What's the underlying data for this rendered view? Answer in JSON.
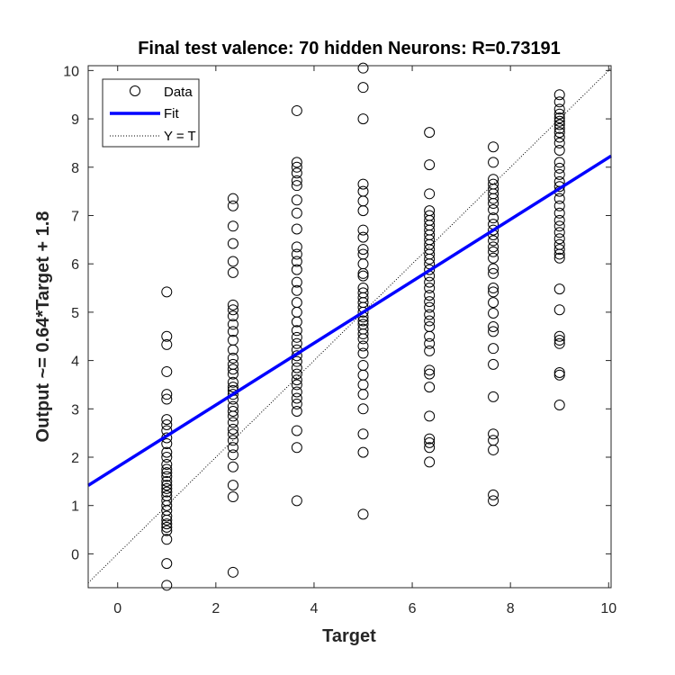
{
  "chart_data": {
    "type": "scatter",
    "title": "Final test valence: 70 hidden Neurons: R=0.73191",
    "xlabel": "Target",
    "ylabel": "Output ~= 0.64*Target + 1.8",
    "xlim": [
      -0.6,
      10.05
    ],
    "ylim": [
      -0.7,
      10.1
    ],
    "xticks": [
      0,
      2,
      4,
      6,
      8,
      10
    ],
    "yticks": [
      0,
      1,
      2,
      3,
      4,
      5,
      6,
      7,
      8,
      9,
      10
    ],
    "grid": false,
    "legend_position": "top-left",
    "legend": [
      "Data",
      "Fit",
      "Y = T"
    ],
    "fit": {
      "slope": 0.64,
      "intercept": 1.8,
      "color": "#0000ff"
    },
    "identity_line": {
      "slope": 1,
      "intercept": 0,
      "style": "dotted"
    },
    "marker": "open-circle",
    "data_points": [
      {
        "x": 1.0,
        "y": 5.42
      },
      {
        "x": 1.0,
        "y": 4.5
      },
      {
        "x": 1.0,
        "y": 4.33
      },
      {
        "x": 1.0,
        "y": 3.77
      },
      {
        "x": 1.0,
        "y": 3.3
      },
      {
        "x": 1.0,
        "y": 3.2
      },
      {
        "x": 1.0,
        "y": 2.78
      },
      {
        "x": 1.0,
        "y": 2.67
      },
      {
        "x": 1.0,
        "y": 2.55
      },
      {
        "x": 1.0,
        "y": 2.4
      },
      {
        "x": 1.0,
        "y": 2.28
      },
      {
        "x": 1.0,
        "y": 2.1
      },
      {
        "x": 1.0,
        "y": 2.0
      },
      {
        "x": 1.0,
        "y": 1.85
      },
      {
        "x": 1.0,
        "y": 1.75
      },
      {
        "x": 1.0,
        "y": 1.68
      },
      {
        "x": 1.0,
        "y": 1.6
      },
      {
        "x": 1.0,
        "y": 1.5
      },
      {
        "x": 1.0,
        "y": 1.42
      },
      {
        "x": 1.0,
        "y": 1.35
      },
      {
        "x": 1.0,
        "y": 1.28
      },
      {
        "x": 1.0,
        "y": 1.2
      },
      {
        "x": 1.0,
        "y": 1.1
      },
      {
        "x": 1.0,
        "y": 1.0
      },
      {
        "x": 1.0,
        "y": 0.9
      },
      {
        "x": 1.0,
        "y": 0.78
      },
      {
        "x": 1.0,
        "y": 0.7
      },
      {
        "x": 1.0,
        "y": 0.62
      },
      {
        "x": 1.0,
        "y": 0.55
      },
      {
        "x": 1.0,
        "y": 0.48
      },
      {
        "x": 1.0,
        "y": 0.3
      },
      {
        "x": 1.0,
        "y": -0.2
      },
      {
        "x": 1.0,
        "y": -0.65
      },
      {
        "x": 2.35,
        "y": 7.35
      },
      {
        "x": 2.35,
        "y": 7.2
      },
      {
        "x": 2.35,
        "y": 6.78
      },
      {
        "x": 2.35,
        "y": 6.42
      },
      {
        "x": 2.35,
        "y": 6.05
      },
      {
        "x": 2.35,
        "y": 5.82
      },
      {
        "x": 2.35,
        "y": 5.15
      },
      {
        "x": 2.35,
        "y": 5.05
      },
      {
        "x": 2.35,
        "y": 4.92
      },
      {
        "x": 2.35,
        "y": 4.75
      },
      {
        "x": 2.35,
        "y": 4.6
      },
      {
        "x": 2.35,
        "y": 4.42
      },
      {
        "x": 2.35,
        "y": 4.22
      },
      {
        "x": 2.35,
        "y": 4.05
      },
      {
        "x": 2.35,
        "y": 3.92
      },
      {
        "x": 2.35,
        "y": 3.82
      },
      {
        "x": 2.35,
        "y": 3.72
      },
      {
        "x": 2.35,
        "y": 3.55
      },
      {
        "x": 2.35,
        "y": 3.45
      },
      {
        "x": 2.35,
        "y": 3.38
      },
      {
        "x": 2.35,
        "y": 3.3
      },
      {
        "x": 2.35,
        "y": 3.2
      },
      {
        "x": 2.35,
        "y": 3.05
      },
      {
        "x": 2.35,
        "y": 2.95
      },
      {
        "x": 2.35,
        "y": 2.85
      },
      {
        "x": 2.35,
        "y": 2.72
      },
      {
        "x": 2.35,
        "y": 2.58
      },
      {
        "x": 2.35,
        "y": 2.48
      },
      {
        "x": 2.35,
        "y": 2.35
      },
      {
        "x": 2.35,
        "y": 2.2
      },
      {
        "x": 2.35,
        "y": 2.05
      },
      {
        "x": 2.35,
        "y": 1.8
      },
      {
        "x": 2.35,
        "y": 1.42
      },
      {
        "x": 2.35,
        "y": 1.18
      },
      {
        "x": 2.35,
        "y": -0.38
      },
      {
        "x": 3.65,
        "y": 9.17
      },
      {
        "x": 3.65,
        "y": 8.1
      },
      {
        "x": 3.65,
        "y": 8.0
      },
      {
        "x": 3.65,
        "y": 7.88
      },
      {
        "x": 3.65,
        "y": 7.72
      },
      {
        "x": 3.65,
        "y": 7.62
      },
      {
        "x": 3.65,
        "y": 7.32
      },
      {
        "x": 3.65,
        "y": 7.05
      },
      {
        "x": 3.65,
        "y": 6.72
      },
      {
        "x": 3.65,
        "y": 6.35
      },
      {
        "x": 3.65,
        "y": 6.2
      },
      {
        "x": 3.65,
        "y": 6.05
      },
      {
        "x": 3.65,
        "y": 5.88
      },
      {
        "x": 3.65,
        "y": 5.62
      },
      {
        "x": 3.65,
        "y": 5.45
      },
      {
        "x": 3.65,
        "y": 5.2
      },
      {
        "x": 3.65,
        "y": 5.0
      },
      {
        "x": 3.65,
        "y": 4.8
      },
      {
        "x": 3.65,
        "y": 4.62
      },
      {
        "x": 3.65,
        "y": 4.48
      },
      {
        "x": 3.65,
        "y": 4.35
      },
      {
        "x": 3.65,
        "y": 4.22
      },
      {
        "x": 3.65,
        "y": 4.1
      },
      {
        "x": 3.65,
        "y": 3.98
      },
      {
        "x": 3.65,
        "y": 3.85
      },
      {
        "x": 3.65,
        "y": 3.72
      },
      {
        "x": 3.65,
        "y": 3.6
      },
      {
        "x": 3.65,
        "y": 3.5
      },
      {
        "x": 3.65,
        "y": 3.35
      },
      {
        "x": 3.65,
        "y": 3.22
      },
      {
        "x": 3.65,
        "y": 3.1
      },
      {
        "x": 3.65,
        "y": 2.95
      },
      {
        "x": 3.65,
        "y": 2.55
      },
      {
        "x": 3.65,
        "y": 2.2
      },
      {
        "x": 3.65,
        "y": 1.1
      },
      {
        "x": 5.0,
        "y": 10.05
      },
      {
        "x": 5.0,
        "y": 9.65
      },
      {
        "x": 5.0,
        "y": 9.0
      },
      {
        "x": 5.0,
        "y": 7.65
      },
      {
        "x": 5.0,
        "y": 7.5
      },
      {
        "x": 5.0,
        "y": 7.3
      },
      {
        "x": 5.0,
        "y": 7.1
      },
      {
        "x": 5.0,
        "y": 6.7
      },
      {
        "x": 5.0,
        "y": 6.55
      },
      {
        "x": 5.0,
        "y": 6.3
      },
      {
        "x": 5.0,
        "y": 6.2
      },
      {
        "x": 5.0,
        "y": 6.0
      },
      {
        "x": 5.0,
        "y": 5.8
      },
      {
        "x": 5.0,
        "y": 5.75
      },
      {
        "x": 5.0,
        "y": 5.5
      },
      {
        "x": 5.0,
        "y": 5.4
      },
      {
        "x": 5.0,
        "y": 5.3
      },
      {
        "x": 5.0,
        "y": 5.2
      },
      {
        "x": 5.0,
        "y": 5.1
      },
      {
        "x": 5.0,
        "y": 5.0
      },
      {
        "x": 5.0,
        "y": 4.9
      },
      {
        "x": 5.0,
        "y": 4.82
      },
      {
        "x": 5.0,
        "y": 4.75
      },
      {
        "x": 5.0,
        "y": 4.65
      },
      {
        "x": 5.0,
        "y": 4.55
      },
      {
        "x": 5.0,
        "y": 4.45
      },
      {
        "x": 5.0,
        "y": 4.3
      },
      {
        "x": 5.0,
        "y": 4.15
      },
      {
        "x": 5.0,
        "y": 3.9
      },
      {
        "x": 5.0,
        "y": 3.7
      },
      {
        "x": 5.0,
        "y": 3.5
      },
      {
        "x": 5.0,
        "y": 3.3
      },
      {
        "x": 5.0,
        "y": 3.0
      },
      {
        "x": 5.0,
        "y": 2.48
      },
      {
        "x": 5.0,
        "y": 2.1
      },
      {
        "x": 5.0,
        "y": 0.82
      },
      {
        "x": 6.35,
        "y": 8.72
      },
      {
        "x": 6.35,
        "y": 8.05
      },
      {
        "x": 6.35,
        "y": 7.45
      },
      {
        "x": 6.35,
        "y": 7.1
      },
      {
        "x": 6.35,
        "y": 7.0
      },
      {
        "x": 6.35,
        "y": 6.9
      },
      {
        "x": 6.35,
        "y": 6.8
      },
      {
        "x": 6.35,
        "y": 6.7
      },
      {
        "x": 6.35,
        "y": 6.6
      },
      {
        "x": 6.35,
        "y": 6.5
      },
      {
        "x": 6.35,
        "y": 6.4
      },
      {
        "x": 6.35,
        "y": 6.3
      },
      {
        "x": 6.35,
        "y": 6.2
      },
      {
        "x": 6.35,
        "y": 6.1
      },
      {
        "x": 6.35,
        "y": 6.0
      },
      {
        "x": 6.35,
        "y": 5.88
      },
      {
        "x": 6.35,
        "y": 5.75
      },
      {
        "x": 6.35,
        "y": 5.62
      },
      {
        "x": 6.35,
        "y": 5.5
      },
      {
        "x": 6.35,
        "y": 5.35
      },
      {
        "x": 6.35,
        "y": 5.22
      },
      {
        "x": 6.35,
        "y": 5.1
      },
      {
        "x": 6.35,
        "y": 4.95
      },
      {
        "x": 6.35,
        "y": 4.82
      },
      {
        "x": 6.35,
        "y": 4.7
      },
      {
        "x": 6.35,
        "y": 4.5
      },
      {
        "x": 6.35,
        "y": 4.35
      },
      {
        "x": 6.35,
        "y": 4.2
      },
      {
        "x": 6.35,
        "y": 3.8
      },
      {
        "x": 6.35,
        "y": 3.72
      },
      {
        "x": 6.35,
        "y": 3.45
      },
      {
        "x": 6.35,
        "y": 2.85
      },
      {
        "x": 6.35,
        "y": 2.38
      },
      {
        "x": 6.35,
        "y": 2.3
      },
      {
        "x": 6.35,
        "y": 2.2
      },
      {
        "x": 6.35,
        "y": 1.9
      },
      {
        "x": 7.65,
        "y": 8.42
      },
      {
        "x": 7.65,
        "y": 8.1
      },
      {
        "x": 7.65,
        "y": 7.75
      },
      {
        "x": 7.65,
        "y": 7.65
      },
      {
        "x": 7.65,
        "y": 7.55
      },
      {
        "x": 7.65,
        "y": 7.45
      },
      {
        "x": 7.65,
        "y": 7.35
      },
      {
        "x": 7.65,
        "y": 7.25
      },
      {
        "x": 7.65,
        "y": 7.12
      },
      {
        "x": 7.65,
        "y": 6.95
      },
      {
        "x": 7.65,
        "y": 6.82
      },
      {
        "x": 7.65,
        "y": 6.7
      },
      {
        "x": 7.65,
        "y": 6.6
      },
      {
        "x": 7.65,
        "y": 6.48
      },
      {
        "x": 7.65,
        "y": 6.35
      },
      {
        "x": 7.65,
        "y": 6.25
      },
      {
        "x": 7.65,
        "y": 6.12
      },
      {
        "x": 7.65,
        "y": 5.9
      },
      {
        "x": 7.65,
        "y": 5.8
      },
      {
        "x": 7.65,
        "y": 5.5
      },
      {
        "x": 7.65,
        "y": 5.42
      },
      {
        "x": 7.65,
        "y": 5.2
      },
      {
        "x": 7.65,
        "y": 4.98
      },
      {
        "x": 7.65,
        "y": 4.7
      },
      {
        "x": 7.65,
        "y": 4.6
      },
      {
        "x": 7.65,
        "y": 4.25
      },
      {
        "x": 7.65,
        "y": 3.92
      },
      {
        "x": 7.65,
        "y": 3.25
      },
      {
        "x": 7.65,
        "y": 2.48
      },
      {
        "x": 7.65,
        "y": 2.35
      },
      {
        "x": 7.65,
        "y": 2.15
      },
      {
        "x": 7.65,
        "y": 1.22
      },
      {
        "x": 7.65,
        "y": 1.1
      },
      {
        "x": 9.0,
        "y": 9.5
      },
      {
        "x": 9.0,
        "y": 9.35
      },
      {
        "x": 9.0,
        "y": 9.2
      },
      {
        "x": 9.0,
        "y": 9.1
      },
      {
        "x": 9.0,
        "y": 9.02
      },
      {
        "x": 9.0,
        "y": 8.95
      },
      {
        "x": 9.0,
        "y": 8.88
      },
      {
        "x": 9.0,
        "y": 8.8
      },
      {
        "x": 9.0,
        "y": 8.72
      },
      {
        "x": 9.0,
        "y": 8.62
      },
      {
        "x": 9.0,
        "y": 8.5
      },
      {
        "x": 9.0,
        "y": 8.35
      },
      {
        "x": 9.0,
        "y": 8.1
      },
      {
        "x": 9.0,
        "y": 7.98
      },
      {
        "x": 9.0,
        "y": 7.85
      },
      {
        "x": 9.0,
        "y": 7.7
      },
      {
        "x": 9.0,
        "y": 7.6
      },
      {
        "x": 9.0,
        "y": 7.5
      },
      {
        "x": 9.0,
        "y": 7.35
      },
      {
        "x": 9.0,
        "y": 7.2
      },
      {
        "x": 9.0,
        "y": 7.05
      },
      {
        "x": 9.0,
        "y": 6.9
      },
      {
        "x": 9.0,
        "y": 6.78
      },
      {
        "x": 9.0,
        "y": 6.65
      },
      {
        "x": 9.0,
        "y": 6.52
      },
      {
        "x": 9.0,
        "y": 6.4
      },
      {
        "x": 9.0,
        "y": 6.3
      },
      {
        "x": 9.0,
        "y": 6.2
      },
      {
        "x": 9.0,
        "y": 6.12
      },
      {
        "x": 9.0,
        "y": 5.48
      },
      {
        "x": 9.0,
        "y": 5.05
      },
      {
        "x": 9.0,
        "y": 4.5
      },
      {
        "x": 9.0,
        "y": 4.42
      },
      {
        "x": 9.0,
        "y": 4.35
      },
      {
        "x": 9.0,
        "y": 3.75
      },
      {
        "x": 9.0,
        "y": 3.7
      },
      {
        "x": 9.0,
        "y": 3.08
      }
    ]
  }
}
